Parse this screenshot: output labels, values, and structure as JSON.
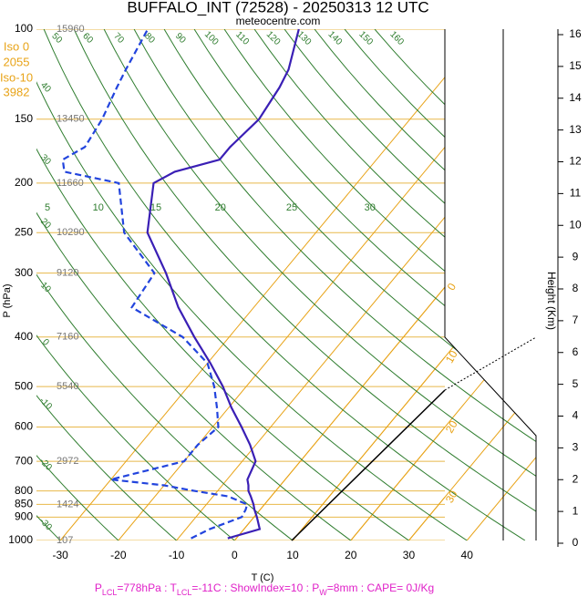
{
  "chart_data": {
    "type": "skewt",
    "title": "BUFFALO_INT (72528) - 20250313 12 UTC",
    "subtitle": "meteocentre.com",
    "y_label": "P (hPa)",
    "x_label": "T (C)",
    "y2_label": "Height (Km)",
    "ylim": [
      100,
      1000
    ],
    "yticks": [
      100,
      150,
      200,
      250,
      300,
      400,
      500,
      600,
      700,
      800,
      850,
      900,
      1000
    ],
    "isobar_heights": [
      "15960",
      "13450",
      "11660",
      "10290",
      "9120",
      "7160",
      "5540",
      null,
      "2972",
      null,
      "1424",
      null,
      "107"
    ],
    "xlim": [
      -34.1,
      36.2
    ],
    "xticks": [
      -30,
      -20,
      -10,
      0,
      10,
      20,
      30,
      40
    ],
    "y2lim": [
      0,
      16
    ],
    "y2ticks": [
      0,
      1,
      2,
      3,
      4,
      5,
      6,
      7,
      8,
      9,
      10,
      11,
      12,
      13,
      14,
      15,
      16
    ],
    "isotherm_labels": [
      30,
      20,
      10,
      0
    ],
    "adiabat_labels_top": [
      50,
      60,
      70,
      80,
      90,
      100,
      110,
      120,
      130,
      140,
      150,
      160
    ],
    "adiabat_labels_left": [
      40,
      30,
      20,
      10,
      0,
      -10,
      -20,
      -30
    ],
    "moist_labels": [
      5,
      10,
      15,
      20,
      25,
      30
    ],
    "info_labels": [
      "Iso 0",
      "2055",
      "Iso-10",
      "3982"
    ],
    "footer_parts": [
      "P",
      "LCL",
      "=778hPa : T",
      "LCL",
      "=-11C : ShowIndex=10 : P",
      "W",
      "=8mm : CAPE= 0J/Kg"
    ],
    "pressure": [
      990,
      950,
      900,
      870,
      850,
      820,
      800,
      780,
      760,
      700,
      650,
      600,
      550,
      500,
      450,
      400,
      350,
      300,
      250,
      200,
      190,
      180,
      170,
      150,
      130,
      120,
      100
    ],
    "series": [
      {
        "color": "#3a1fb5",
        "dash": false,
        "values": [
          -1.5,
          2.7,
          0.5,
          -1.0,
          -1.9,
          -3.5,
          -4.7,
          -5.5,
          -6.5,
          -7.7,
          -11,
          -15,
          -19.5,
          -24,
          -29.5,
          -36,
          -43,
          -50,
          -59,
          -65,
          -63,
          -57,
          -57,
          -56,
          -57,
          -58,
          -62
        ]
      },
      {
        "color": "#2244dd",
        "dash": true,
        "values": [
          -7.8,
          -5.9,
          -2.1,
          -2.5,
          -3.0,
          -7.4,
          -14,
          -20,
          -30,
          -20,
          -20,
          -19,
          -22,
          -25.5,
          -30,
          -38,
          -51,
          -52,
          -63,
          -71,
          -82,
          -84,
          -82,
          -83,
          -85,
          -86,
          -88
        ]
      }
    ]
  }
}
